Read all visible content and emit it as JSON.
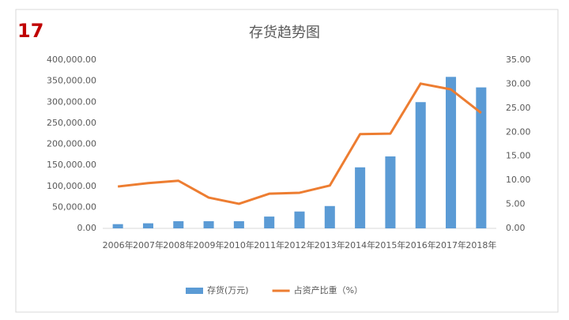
{
  "chart_data": {
    "type": "bar-line",
    "title": "存货趋势图",
    "annotation": "17",
    "categories": [
      "2006年",
      "2007年",
      "2008年",
      "2009年",
      "2010年",
      "2011年",
      "2012年",
      "2013年",
      "2014年",
      "2015年",
      "2016年",
      "2017年",
      "2018年"
    ],
    "series": [
      {
        "name": "存货(万元)",
        "type": "bar",
        "color": "#5b9bd5",
        "values": [
          10000,
          12000,
          17000,
          17000,
          17000,
          28000,
          40000,
          53000,
          145000,
          171000,
          300000,
          360000,
          335000
        ]
      },
      {
        "name": "占资产比重（%）",
        "type": "line",
        "axis": "y2",
        "color": "#ed7d31",
        "values": [
          8.7,
          9.4,
          9.9,
          6.4,
          5.1,
          7.2,
          7.4,
          8.9,
          19.6,
          19.7,
          30.1,
          28.9,
          24.0
        ]
      }
    ],
    "ylim": [
      0,
      400000
    ],
    "yticks": [
      {
        "value": 0,
        "label": "0.00"
      },
      {
        "value": 50000,
        "label": "50,000.00"
      },
      {
        "value": 100000,
        "label": "100,000.00"
      },
      {
        "value": 150000,
        "label": "150,000.00"
      },
      {
        "value": 200000,
        "label": "200,000.00"
      },
      {
        "value": 250000,
        "label": "250,000.00"
      },
      {
        "value": 300000,
        "label": "300,000.00"
      },
      {
        "value": 350000,
        "label": "350,000.00"
      },
      {
        "value": 400000,
        "label": "400,000.00"
      }
    ],
    "y2lim": [
      0,
      35
    ],
    "y2ticks": [
      {
        "value": 0,
        "label": "0.00"
      },
      {
        "value": 5,
        "label": "5.00"
      },
      {
        "value": 10,
        "label": "10.00"
      },
      {
        "value": 15,
        "label": "15.00"
      },
      {
        "value": 20,
        "label": "20.00"
      },
      {
        "value": 25,
        "label": "25.00"
      },
      {
        "value": 30,
        "label": "30.00"
      },
      {
        "value": 35,
        "label": "35.00"
      }
    ],
    "grid": false,
    "legend": "bottom"
  }
}
